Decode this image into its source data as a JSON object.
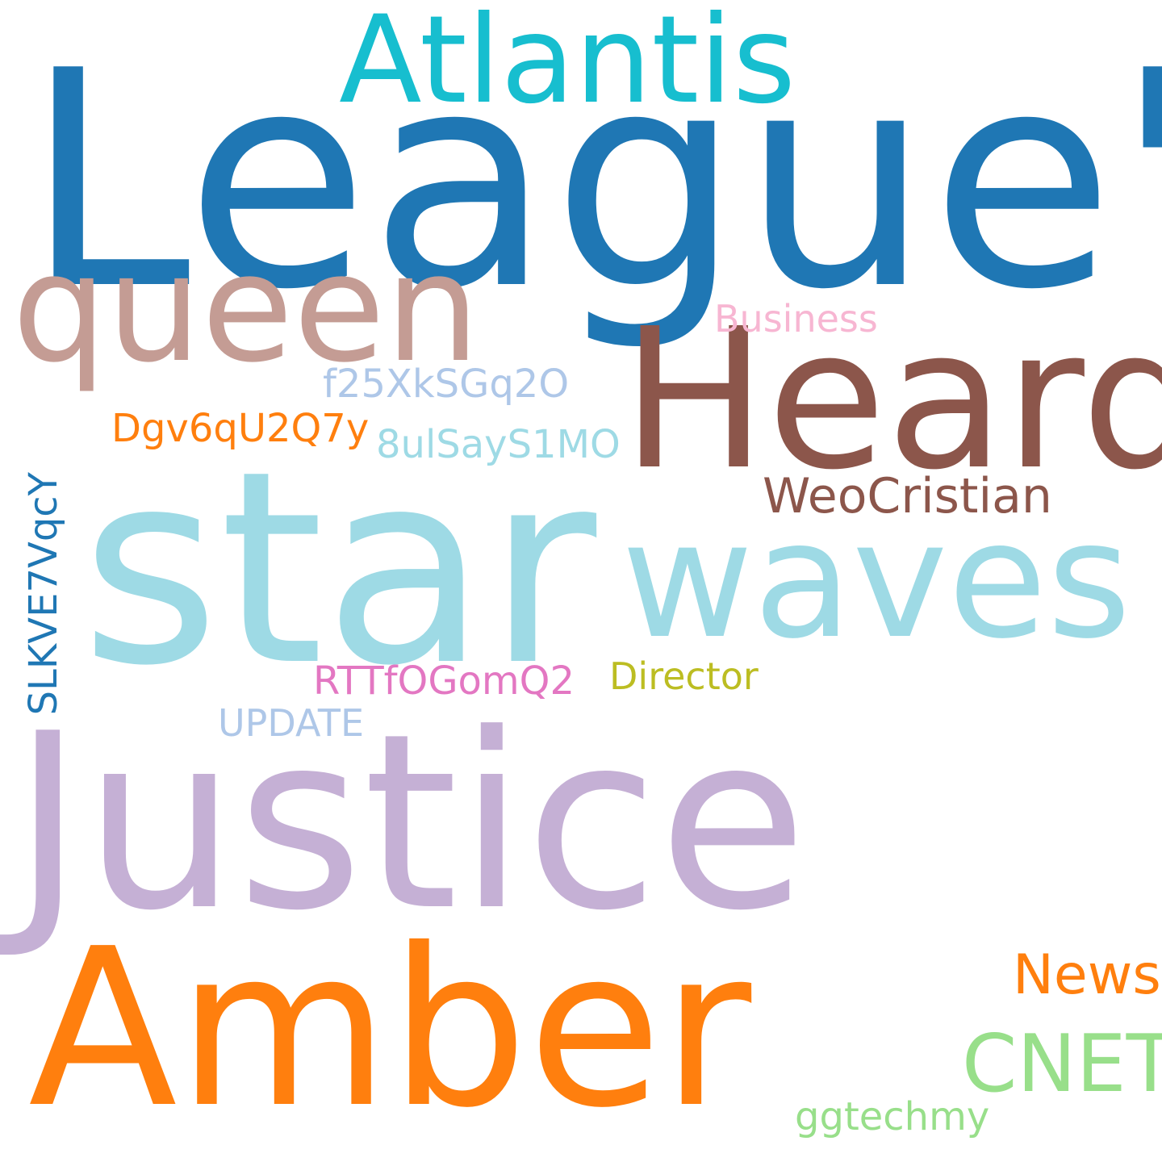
{
  "background": "#ffffff",
  "words": {
    "league": {
      "text": "League'",
      "color": "#1f77b4"
    },
    "atlantis": {
      "text": "Atlantis",
      "color": "#17becf"
    },
    "queen": {
      "text": "queen",
      "color": "#c49c94"
    },
    "heard": {
      "text": "Heard",
      "color": "#8c564b"
    },
    "business": {
      "text": "Business",
      "color": "#f7b6d2"
    },
    "f25": {
      "text": "f25XkSGq2O",
      "color": "#aec7e8"
    },
    "dgv": {
      "text": "Dgv6qU2Q7y",
      "color": "#ff7f0e"
    },
    "ulsay": {
      "text": "8ulSayS1MO",
      "color": "#9edae5"
    },
    "weocristian": {
      "text": "WeoCristian",
      "color": "#8c564b"
    },
    "star": {
      "text": "star",
      "color": "#9edae5"
    },
    "waves": {
      "text": "waves",
      "color": "#9edae5"
    },
    "slkve": {
      "text": "SLKVE7VqcY",
      "color": "#1f77b4"
    },
    "rttf": {
      "text": "RTTfOGomQ2",
      "color": "#e377c2"
    },
    "director": {
      "text": "Director",
      "color": "#bcbd22"
    },
    "update": {
      "text": "UPDATE",
      "color": "#aec7e8"
    },
    "justice": {
      "text": "Justice",
      "color": "#c5b0d5"
    },
    "amber": {
      "text": "Amber",
      "color": "#ff7f0e"
    },
    "news": {
      "text": "News",
      "color": "#ff7f0e"
    },
    "cnet": {
      "text": "CNET",
      "color": "#98df8a"
    },
    "ggtechmy": {
      "text": "ggtechmy",
      "color": "#98df8a"
    }
  }
}
